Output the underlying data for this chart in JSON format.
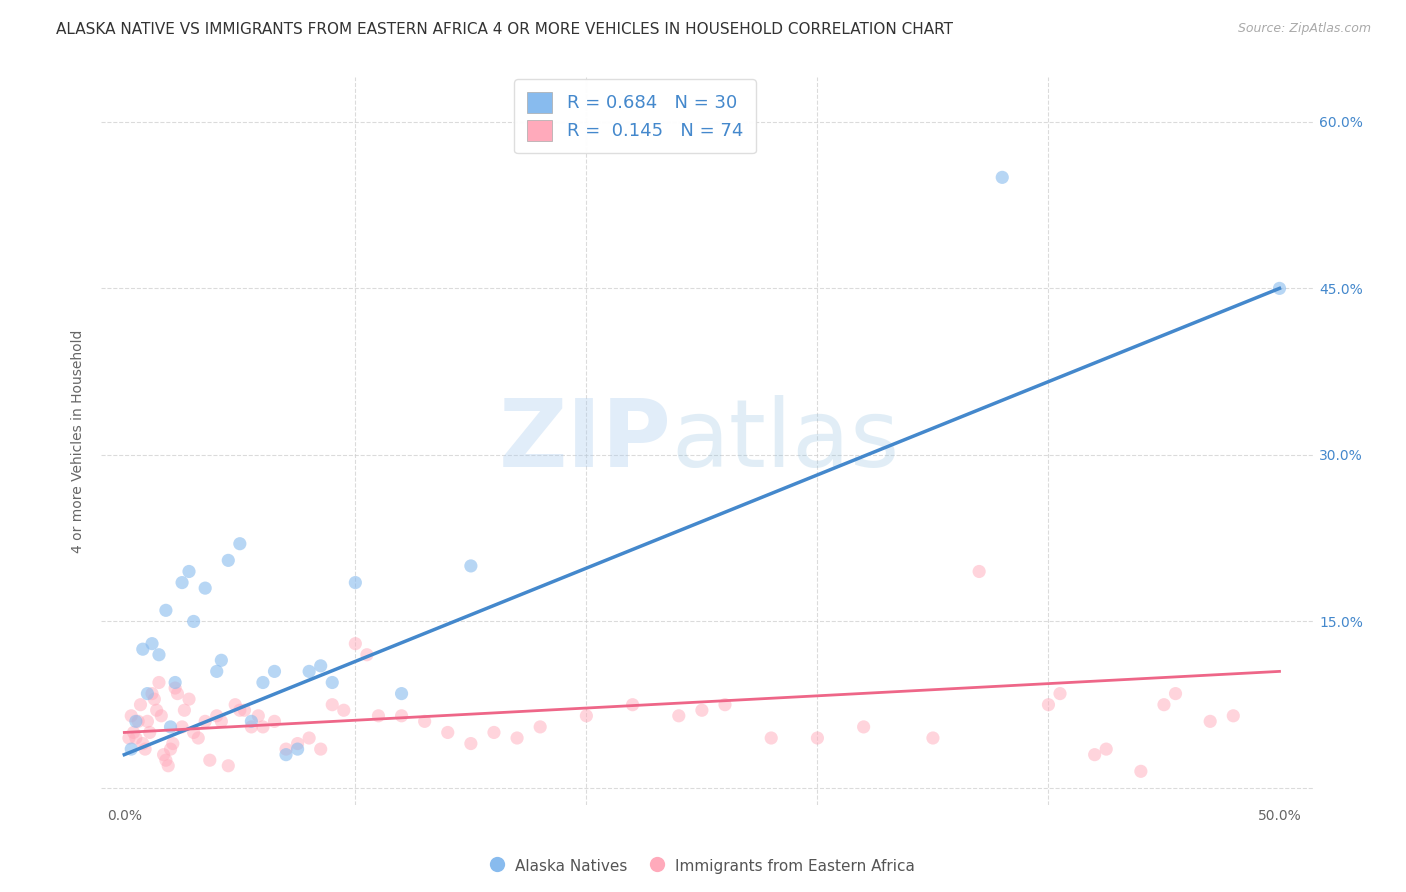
{
  "title": "ALASKA NATIVE VS IMMIGRANTS FROM EASTERN AFRICA 4 OR MORE VEHICLES IN HOUSEHOLD CORRELATION CHART",
  "source": "Source: ZipAtlas.com",
  "ylabel": "4 or more Vehicles in Household",
  "xlim": [
    0.0,
    50.0
  ],
  "ylim": [
    0.0,
    63.0
  ],
  "xtick_positions": [
    0.0,
    10.0,
    20.0,
    30.0,
    40.0,
    50.0
  ],
  "xtick_labels": [
    "0.0%",
    "",
    "",
    "",
    "",
    "50.0%"
  ],
  "ytick_positions": [
    0,
    15,
    30,
    45,
    60
  ],
  "ytick_right_labels": [
    "",
    "15.0%",
    "30.0%",
    "45.0%",
    "60.0%"
  ],
  "grid_color": "#cccccc",
  "background_color": "#ffffff",
  "blue_color": "#88bbee",
  "pink_color": "#ffaabb",
  "blue_line_color": "#4488cc",
  "pink_line_color": "#ee6688",
  "legend_R_blue": "0.684",
  "legend_N_blue": "30",
  "legend_R_pink": "0.145",
  "legend_N_pink": "74",
  "legend_label_blue": "Alaska Natives",
  "legend_label_pink": "Immigrants from Eastern Africa",
  "watermark_zip": "ZIP",
  "watermark_atlas": "atlas",
  "title_fontsize": 11,
  "axis_label_fontsize": 10,
  "tick_fontsize": 10,
  "source_fontsize": 9,
  "marker_size": 90,
  "blue_scatter": [
    [
      0.3,
      3.5
    ],
    [
      0.5,
      6.0
    ],
    [
      0.8,
      12.5
    ],
    [
      1.0,
      8.5
    ],
    [
      1.2,
      13.0
    ],
    [
      1.5,
      12.0
    ],
    [
      1.8,
      16.0
    ],
    [
      2.0,
      5.5
    ],
    [
      2.2,
      9.5
    ],
    [
      2.5,
      18.5
    ],
    [
      2.8,
      19.5
    ],
    [
      3.0,
      15.0
    ],
    [
      3.5,
      18.0
    ],
    [
      4.0,
      10.5
    ],
    [
      4.2,
      11.5
    ],
    [
      4.5,
      20.5
    ],
    [
      5.0,
      22.0
    ],
    [
      5.5,
      6.0
    ],
    [
      6.0,
      9.5
    ],
    [
      6.5,
      10.5
    ],
    [
      7.0,
      3.0
    ],
    [
      7.5,
      3.5
    ],
    [
      8.0,
      10.5
    ],
    [
      8.5,
      11.0
    ],
    [
      9.0,
      9.5
    ],
    [
      10.0,
      18.5
    ],
    [
      12.0,
      8.5
    ],
    [
      15.0,
      20.0
    ],
    [
      38.0,
      55.0
    ],
    [
      50.0,
      45.0
    ]
  ],
  "pink_scatter": [
    [
      0.2,
      4.5
    ],
    [
      0.3,
      6.5
    ],
    [
      0.4,
      5.0
    ],
    [
      0.5,
      4.5
    ],
    [
      0.6,
      6.0
    ],
    [
      0.7,
      7.5
    ],
    [
      0.8,
      4.0
    ],
    [
      0.9,
      3.5
    ],
    [
      1.0,
      6.0
    ],
    [
      1.1,
      5.0
    ],
    [
      1.2,
      8.5
    ],
    [
      1.3,
      8.0
    ],
    [
      1.4,
      7.0
    ],
    [
      1.5,
      9.5
    ],
    [
      1.6,
      6.5
    ],
    [
      1.7,
      3.0
    ],
    [
      1.8,
      2.5
    ],
    [
      1.9,
      2.0
    ],
    [
      2.0,
      3.5
    ],
    [
      2.1,
      4.0
    ],
    [
      2.2,
      9.0
    ],
    [
      2.3,
      8.5
    ],
    [
      2.5,
      5.5
    ],
    [
      2.6,
      7.0
    ],
    [
      2.8,
      8.0
    ],
    [
      3.0,
      5.0
    ],
    [
      3.2,
      4.5
    ],
    [
      3.5,
      6.0
    ],
    [
      3.7,
      2.5
    ],
    [
      4.0,
      6.5
    ],
    [
      4.2,
      6.0
    ],
    [
      4.5,
      2.0
    ],
    [
      4.8,
      7.5
    ],
    [
      5.0,
      7.0
    ],
    [
      5.2,
      7.0
    ],
    [
      5.5,
      5.5
    ],
    [
      5.8,
      6.5
    ],
    [
      6.0,
      5.5
    ],
    [
      6.5,
      6.0
    ],
    [
      7.0,
      3.5
    ],
    [
      7.5,
      4.0
    ],
    [
      8.0,
      4.5
    ],
    [
      8.5,
      3.5
    ],
    [
      9.0,
      7.5
    ],
    [
      9.5,
      7.0
    ],
    [
      10.0,
      13.0
    ],
    [
      10.5,
      12.0
    ],
    [
      11.0,
      6.5
    ],
    [
      12.0,
      6.5
    ],
    [
      13.0,
      6.0
    ],
    [
      14.0,
      5.0
    ],
    [
      15.0,
      4.0
    ],
    [
      16.0,
      5.0
    ],
    [
      17.0,
      4.5
    ],
    [
      18.0,
      5.5
    ],
    [
      20.0,
      6.5
    ],
    [
      22.0,
      7.5
    ],
    [
      24.0,
      6.5
    ],
    [
      25.0,
      7.0
    ],
    [
      26.0,
      7.5
    ],
    [
      28.0,
      4.5
    ],
    [
      30.0,
      4.5
    ],
    [
      32.0,
      5.5
    ],
    [
      35.0,
      4.5
    ],
    [
      37.0,
      19.5
    ],
    [
      40.0,
      7.5
    ],
    [
      40.5,
      8.5
    ],
    [
      42.0,
      3.0
    ],
    [
      42.5,
      3.5
    ],
    [
      44.0,
      1.5
    ],
    [
      45.0,
      7.5
    ],
    [
      45.5,
      8.5
    ],
    [
      47.0,
      6.0
    ],
    [
      48.0,
      6.5
    ]
  ]
}
